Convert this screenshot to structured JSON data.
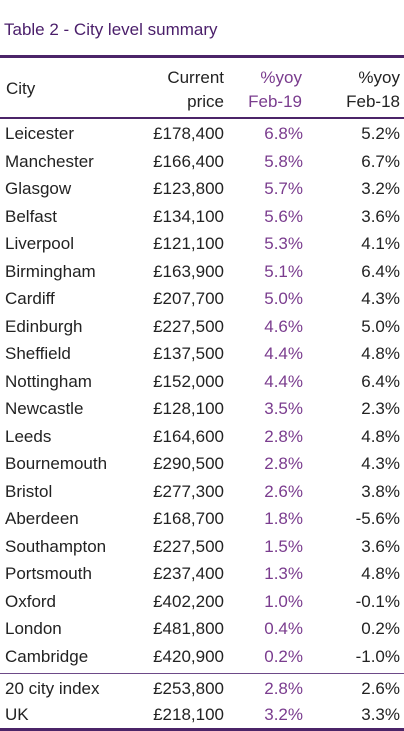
{
  "title": "Table 2 - City level summary",
  "headers": {
    "city": "City",
    "price_line1": "Current",
    "price_line2": "price",
    "yoy19_line1": "%yoy",
    "yoy19_line2": "Feb-19",
    "yoy18_line1": "%yoy",
    "yoy18_line2": "Feb-18"
  },
  "rows": [
    {
      "city": "Leicester",
      "price": "£178,400",
      "yoy_feb19": "6.8%",
      "yoy_feb18": "5.2%"
    },
    {
      "city": "Manchester",
      "price": "£166,400",
      "yoy_feb19": "5.8%",
      "yoy_feb18": "6.7%"
    },
    {
      "city": "Glasgow",
      "price": "£123,800",
      "yoy_feb19": "5.7%",
      "yoy_feb18": "3.2%"
    },
    {
      "city": "Belfast",
      "price": "£134,100",
      "yoy_feb19": "5.6%",
      "yoy_feb18": "3.6%"
    },
    {
      "city": "Liverpool",
      "price": "£121,100",
      "yoy_feb19": "5.3%",
      "yoy_feb18": "4.1%"
    },
    {
      "city": "Birmingham",
      "price": "£163,900",
      "yoy_feb19": "5.1%",
      "yoy_feb18": "6.4%"
    },
    {
      "city": "Cardiff",
      "price": "£207,700",
      "yoy_feb19": "5.0%",
      "yoy_feb18": "4.3%"
    },
    {
      "city": "Edinburgh",
      "price": "£227,500",
      "yoy_feb19": "4.6%",
      "yoy_feb18": "5.0%"
    },
    {
      "city": "Sheffield",
      "price": "£137,500",
      "yoy_feb19": "4.4%",
      "yoy_feb18": "4.8%"
    },
    {
      "city": "Nottingham",
      "price": "£152,000",
      "yoy_feb19": "4.4%",
      "yoy_feb18": "6.4%"
    },
    {
      "city": "Newcastle",
      "price": "£128,100",
      "yoy_feb19": "3.5%",
      "yoy_feb18": "2.3%"
    },
    {
      "city": "Leeds",
      "price": "£164,600",
      "yoy_feb19": "2.8%",
      "yoy_feb18": "4.8%"
    },
    {
      "city": "Bournemouth",
      "price": "£290,500",
      "yoy_feb19": "2.8%",
      "yoy_feb18": "4.3%"
    },
    {
      "city": "Bristol",
      "price": "£277,300",
      "yoy_feb19": "2.6%",
      "yoy_feb18": "3.8%"
    },
    {
      "city": "Aberdeen",
      "price": "£168,700",
      "yoy_feb19": "1.8%",
      "yoy_feb18": "-5.6%"
    },
    {
      "city": "Southampton",
      "price": "£227,500",
      "yoy_feb19": "1.5%",
      "yoy_feb18": "3.6%"
    },
    {
      "city": "Portsmouth",
      "price": "£237,400",
      "yoy_feb19": "1.3%",
      "yoy_feb18": "4.8%"
    },
    {
      "city": "Oxford",
      "price": "£402,200",
      "yoy_feb19": "1.0%",
      "yoy_feb18": "-0.1%"
    },
    {
      "city": "London",
      "price": "£481,800",
      "yoy_feb19": "0.4%",
      "yoy_feb18": "0.2%"
    },
    {
      "city": "Cambridge",
      "price": "£420,900",
      "yoy_feb19": "0.2%",
      "yoy_feb18": "-1.0%"
    }
  ],
  "summary_rows": [
    {
      "city": "20 city index",
      "price": "£253,800",
      "yoy_feb19": "2.8%",
      "yoy_feb18": "2.6%"
    },
    {
      "city": "UK",
      "price": "£218,100",
      "yoy_feb19": "3.2%",
      "yoy_feb18": "3.3%"
    }
  ],
  "colors": {
    "title": "#4a1e6a",
    "rule": "#4b2468",
    "feb19_column": "#7a3c8e",
    "text": "#222222"
  }
}
